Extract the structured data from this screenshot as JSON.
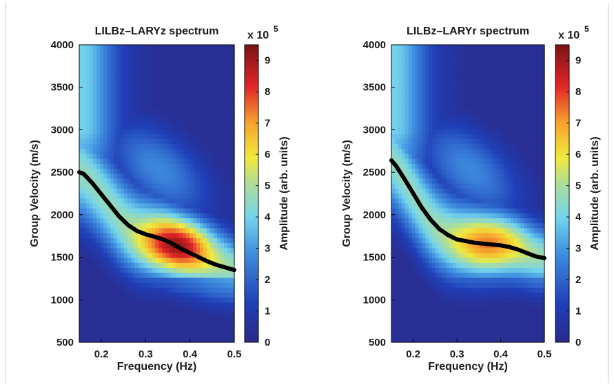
{
  "chart_data": [
    {
      "type": "heatmap",
      "title": "LILBz–LARYz spectrum",
      "xlabel": "Frequency (Hz)",
      "ylabel": "Group Velocity (m/s)",
      "xlim": [
        0.15,
        0.5
      ],
      "ylim": [
        500,
        4000
      ],
      "xticks": [
        "0.2",
        "0.3",
        "0.4",
        "0.5"
      ],
      "yticks": [
        "500",
        "1000",
        "1500",
        "2000",
        "2500",
        "3000",
        "3500",
        "4000"
      ],
      "colorbar": {
        "label": "Amplitude (arb. units)",
        "multiplier": "x 10",
        "exponent": "5",
        "ticks": [
          "0",
          "1",
          "2",
          "3",
          "4",
          "5",
          "6",
          "7",
          "8",
          "9"
        ],
        "range": [
          0,
          9.5
        ],
        "colormap": "jet"
      },
      "dispersion_curve": {
        "x": [
          0.15,
          0.16,
          0.18,
          0.2,
          0.22,
          0.24,
          0.26,
          0.28,
          0.3,
          0.32,
          0.34,
          0.36,
          0.38,
          0.4,
          0.42,
          0.44,
          0.46,
          0.48,
          0.5
        ],
        "y": [
          2500,
          2480,
          2370,
          2240,
          2110,
          1980,
          1880,
          1810,
          1770,
          1740,
          1710,
          1660,
          1600,
          1550,
          1500,
          1450,
          1410,
          1380,
          1350
        ]
      },
      "amplitude_peak": {
        "x": 0.37,
        "y": 1640,
        "value": 9.2
      }
    },
    {
      "type": "heatmap",
      "title": "LILBz–LARYr spectrum",
      "xlabel": "Frequency (Hz)",
      "ylabel": "Group Velocity (m/s)",
      "xlim": [
        0.15,
        0.5
      ],
      "ylim": [
        500,
        4000
      ],
      "xticks": [
        "0.2",
        "0.3",
        "0.4",
        "0.5"
      ],
      "yticks": [
        "500",
        "1000",
        "1500",
        "2000",
        "2500",
        "3000",
        "3500",
        "4000"
      ],
      "colorbar": {
        "label": "Amplitude (arb. units)",
        "multiplier": "x 10",
        "exponent": "5",
        "ticks": [
          "0",
          "1",
          "2",
          "3",
          "4",
          "5",
          "6",
          "7",
          "8",
          "9"
        ],
        "range": [
          0,
          9.5
        ],
        "colormap": "jet"
      },
      "dispersion_curve": {
        "x": [
          0.15,
          0.16,
          0.18,
          0.2,
          0.22,
          0.24,
          0.26,
          0.28,
          0.3,
          0.32,
          0.34,
          0.36,
          0.38,
          0.4,
          0.42,
          0.44,
          0.46,
          0.48,
          0.5
        ],
        "y": [
          2640,
          2580,
          2420,
          2250,
          2080,
          1940,
          1830,
          1760,
          1710,
          1690,
          1670,
          1660,
          1650,
          1640,
          1620,
          1590,
          1550,
          1510,
          1490
        ]
      },
      "amplitude_peak": {
        "x": 0.37,
        "y": 1660,
        "value": 7.4
      }
    }
  ]
}
